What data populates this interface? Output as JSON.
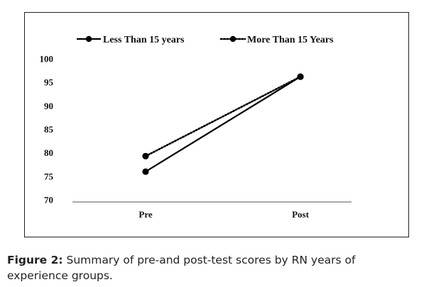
{
  "chart_data": {
    "type": "line",
    "title": "",
    "xlabel": "",
    "ylabel": "",
    "categories": [
      "Pre",
      "Post"
    ],
    "ylim": [
      70,
      100
    ],
    "yticks": [
      70,
      75,
      80,
      85,
      90,
      95,
      100
    ],
    "grid": false,
    "legend_position": "top",
    "series": [
      {
        "name": "Less Than 15 years",
        "values": [
          76,
          96.2
        ],
        "style": "solid",
        "color": "#000000"
      },
      {
        "name": "More Than 15 Years",
        "values": [
          79.3,
          96.2
        ],
        "style": "dotted",
        "color": "#000000"
      }
    ]
  },
  "caption": {
    "label": "Figure 2:",
    "text": " Summary of pre-and post-test scores by RN years of experience groups."
  }
}
